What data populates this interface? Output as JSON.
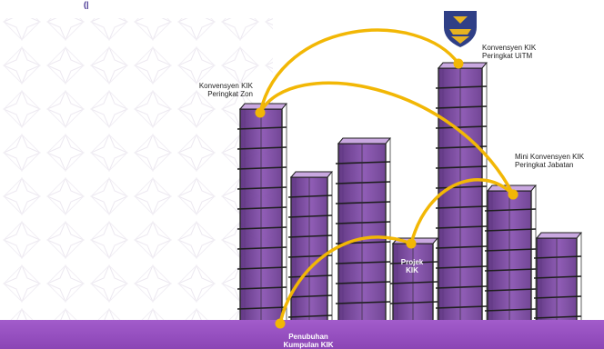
{
  "labels": {
    "zon": "Konvensyen  KIK\nPeringkat Zon",
    "uitm": "Konvensyen  KIK\nPeringkat UiTM",
    "jabatan": "Mini Konvensyen  KIK\nPeringkat Jabatan",
    "projek": "Projek\nKIK",
    "penubuhan": "Penubuhan\nKumpulan KIK"
  },
  "top_mark": "(|",
  "colors": {
    "purple_base": "#9a4fc2",
    "pillar": "#7b4aa0",
    "pillar_light": "#a57cc4",
    "grid": "#1e1e1e",
    "arrow": "#f2b705",
    "logo_blue": "#2f3f86",
    "logo_gold": "#e7b320"
  },
  "icons": {
    "logo": "university-crest-icon"
  }
}
